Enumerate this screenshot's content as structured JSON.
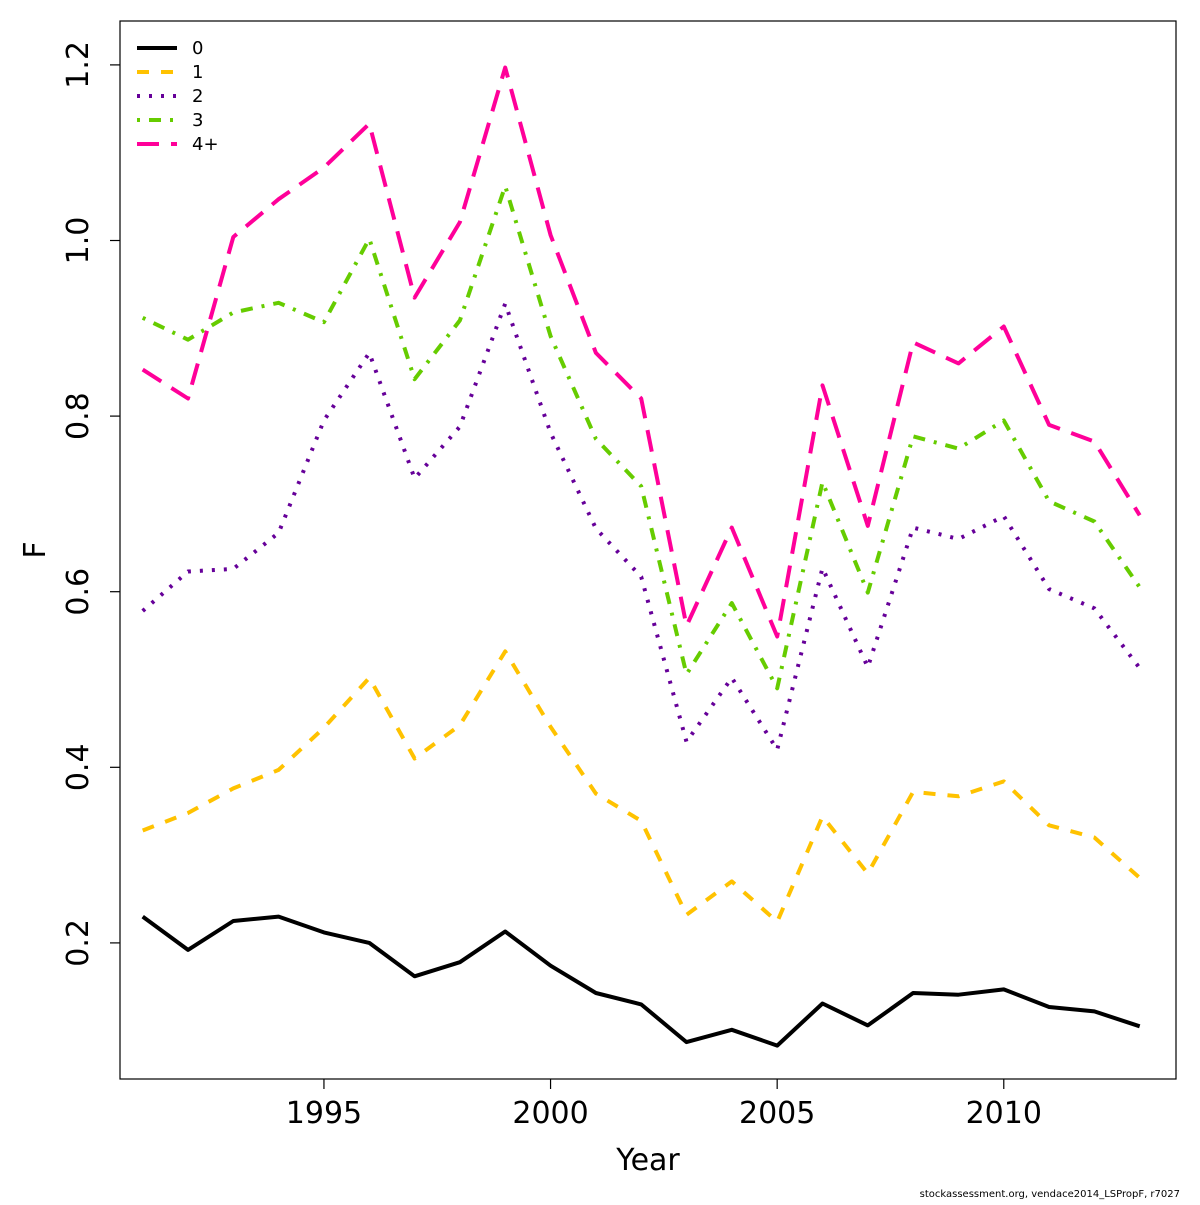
{
  "chart_data": {
    "type": "line",
    "xlabel": "Year",
    "ylabel": "F",
    "xlim": [
      1990.5,
      2013.8
    ],
    "ylim": [
      0.045,
      1.25
    ],
    "xticks": [
      1995,
      2000,
      2005,
      2010
    ],
    "yticks": [
      0.2,
      0.4,
      0.6,
      0.8,
      1.0,
      1.2
    ],
    "ytick_labels": [
      "0.2",
      "0.4",
      "0.6",
      "0.8",
      "1.0",
      "1.2"
    ],
    "grid": false,
    "legend_position": "top-left",
    "x": [
      1991,
      1992,
      1993,
      1994,
      1995,
      1996,
      1997,
      1998,
      1999,
      2000,
      2001,
      2002,
      2003,
      2004,
      2005,
      2006,
      2007,
      2008,
      2009,
      2010,
      2011,
      2012,
      2013
    ],
    "series": [
      {
        "name": "0",
        "color": "#000000",
        "dash": "solid",
        "values": [
          0.23,
          0.192,
          0.225,
          0.23,
          0.212,
          0.2,
          0.162,
          0.178,
          0.213,
          0.174,
          0.143,
          0.13,
          0.087,
          0.101,
          0.083,
          0.131,
          0.106,
          0.143,
          0.141,
          0.147,
          0.127,
          0.122,
          0.105
        ]
      },
      {
        "name": "1",
        "color": "#FFC200",
        "dash": "dashed",
        "values": [
          0.328,
          0.348,
          0.376,
          0.397,
          0.445,
          0.502,
          0.41,
          0.448,
          0.532,
          0.446,
          0.37,
          0.339,
          0.232,
          0.27,
          0.224,
          0.344,
          0.279,
          0.372,
          0.367,
          0.384,
          0.334,
          0.32,
          0.274
        ]
      },
      {
        "name": "2",
        "color": "#660099",
        "dash": "dotted",
        "values": [
          0.578,
          0.623,
          0.626,
          0.667,
          0.795,
          0.872,
          0.729,
          0.788,
          0.928,
          0.781,
          0.672,
          0.617,
          0.429,
          0.502,
          0.42,
          0.627,
          0.514,
          0.673,
          0.66,
          0.686,
          0.603,
          0.581,
          0.513
        ]
      },
      {
        "name": "3",
        "color": "#66CC00",
        "dash": "dotdash",
        "values": [
          0.912,
          0.887,
          0.918,
          0.929,
          0.907,
          1.002,
          0.842,
          0.909,
          1.062,
          0.891,
          0.774,
          0.72,
          0.506,
          0.587,
          0.49,
          0.725,
          0.599,
          0.777,
          0.763,
          0.795,
          0.703,
          0.68,
          0.605
        ]
      },
      {
        "name": "4+",
        "color": "#FF0099",
        "dash": "longdash",
        "values": [
          0.853,
          0.82,
          1.004,
          1.047,
          1.083,
          1.133,
          0.935,
          1.021,
          1.197,
          1.006,
          0.872,
          0.82,
          0.561,
          0.673,
          0.549,
          0.835,
          0.675,
          0.884,
          0.86,
          0.902,
          0.79,
          0.771,
          0.687
        ]
      }
    ]
  },
  "footer": {
    "credit": "stockassessment.org, vendace2014_LSPropF, r7027"
  }
}
